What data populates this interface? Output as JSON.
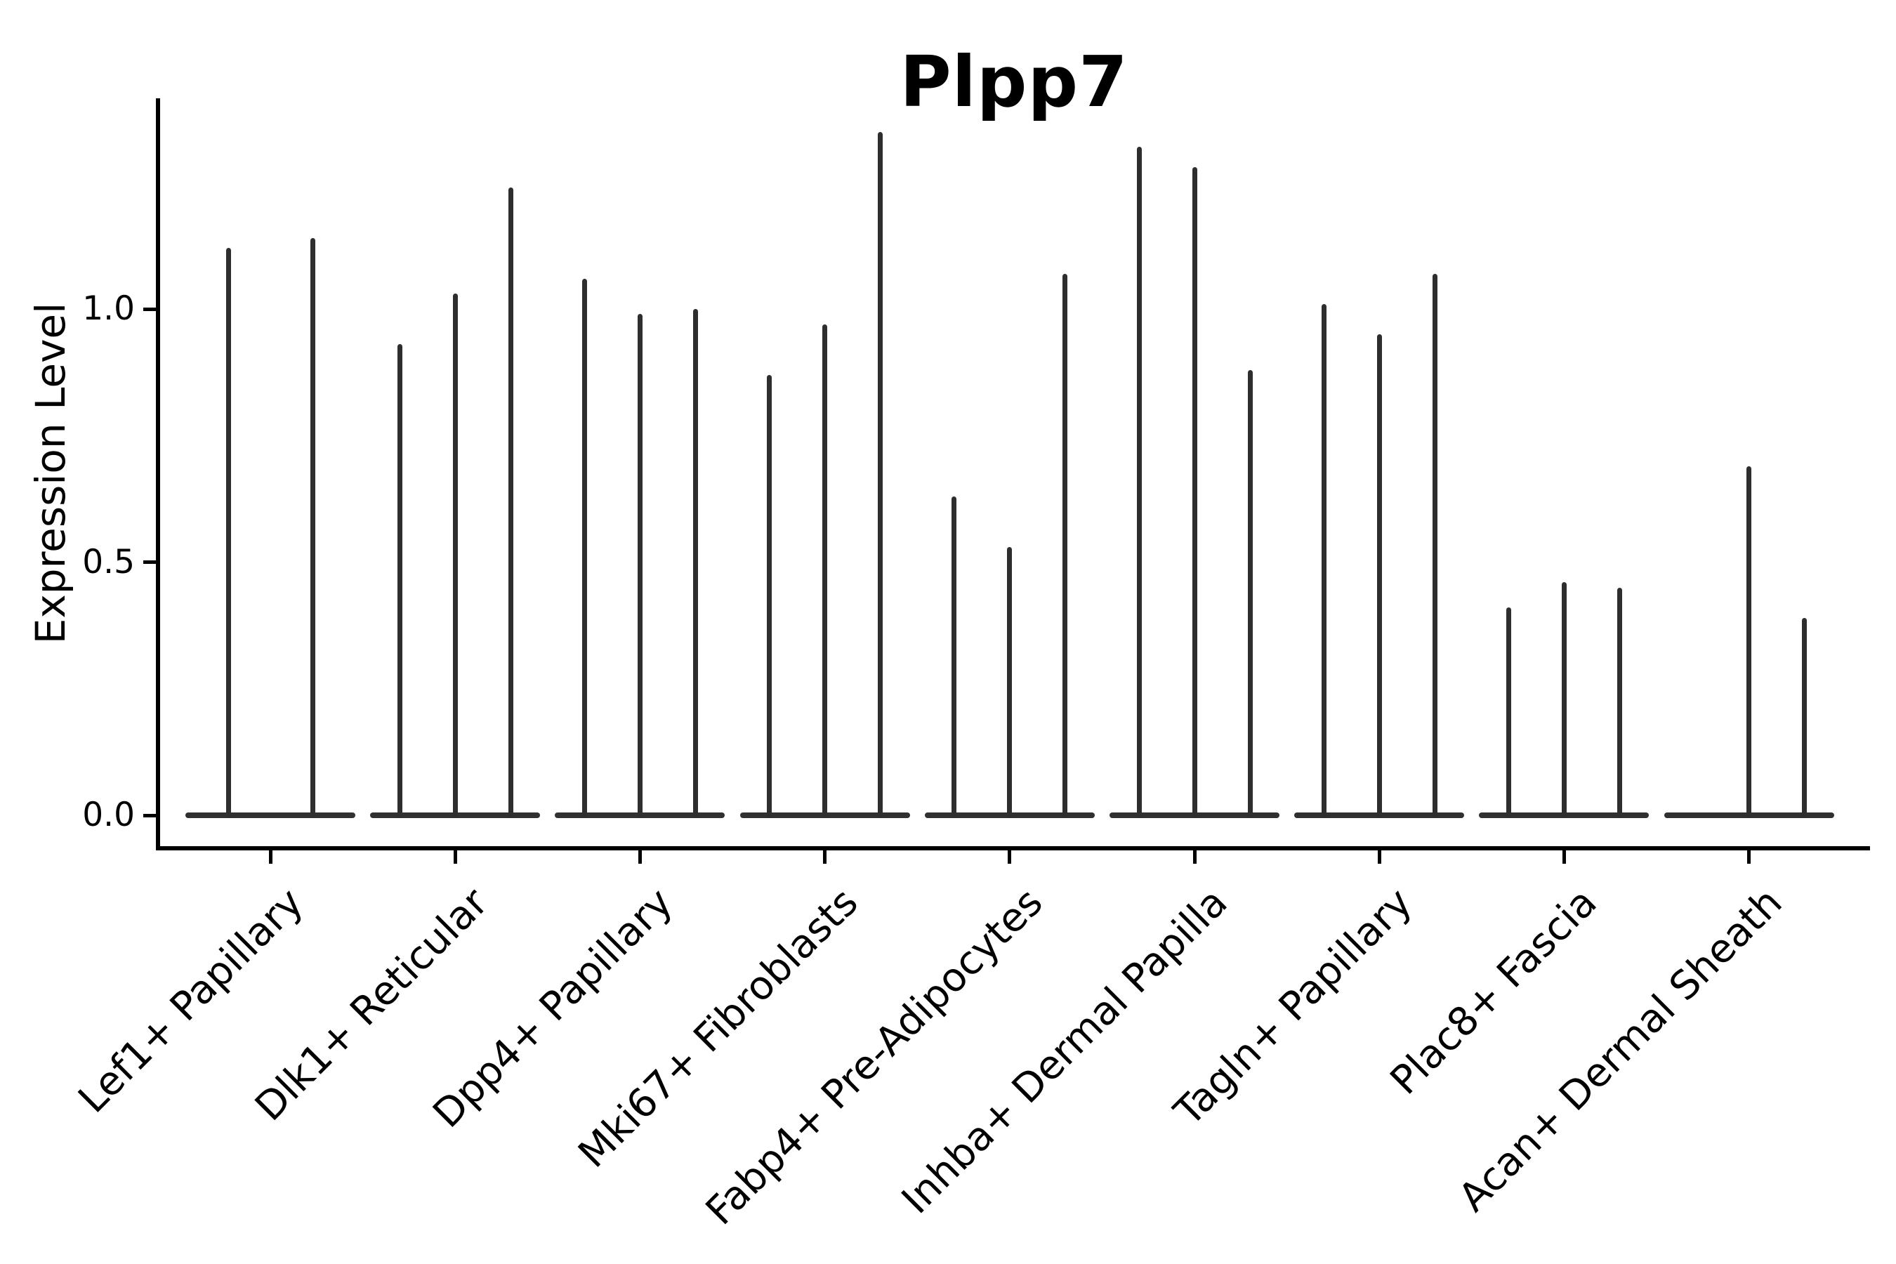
{
  "title": "Plpp7",
  "y_axis": {
    "label": "Expression Level",
    "tick_labels": [
      "0.0",
      "0.5",
      "1.0"
    ],
    "tick_values": [
      0.0,
      0.5,
      1.0
    ]
  },
  "x_axis": {
    "tick_labels": [
      "Lef1+ Papillary",
      "Dlk1+ Reticular",
      "Dpp4+ Papillary",
      "Mki67+ Fibroblasts",
      "Fabp4+ Pre-Adipocytes",
      "Inhba+ Dermal Papilla",
      "Tagln+ Papillary",
      "Plac8+ Fascia",
      "Acan+ Dermal Sheath"
    ]
  },
  "colors": {
    "background": "#ffffff",
    "ink": "#000000",
    "violin": "#2e2e2e"
  },
  "chart_data": {
    "type": "violin",
    "title": "Plpp7",
    "xlabel": "",
    "ylabel": "Expression Level",
    "ylim": [
      -0.07,
      1.42
    ],
    "yticks": [
      0.0,
      0.5,
      1.0
    ],
    "grid": false,
    "legend": "none",
    "description": "Stacked-at-zero violins: each cell-type group contains 2-3 dodged sub-violins that are flat pancakes at 0 expression with a single thin spike rising to the maximum expression value.",
    "categories": [
      "Lef1+ Papillary",
      "Dlk1+ Reticular",
      "Dpp4+ Papillary",
      "Mki67+ Fibroblasts",
      "Fabp4+ Pre-Adipocytes",
      "Inhba+ Dermal Papilla",
      "Tagln+ Papillary",
      "Plac8+ Fascia",
      "Acan+ Dermal Sheath"
    ],
    "series": [
      {
        "name": "Lef1+ Papillary",
        "spike_maxima": [
          1.12,
          1.14
        ]
      },
      {
        "name": "Dlk1+ Reticular",
        "spike_maxima": [
          0.93,
          1.03,
          1.24
        ]
      },
      {
        "name": "Dpp4+ Papillary",
        "spike_maxima": [
          1.06,
          0.99,
          1.0
        ]
      },
      {
        "name": "Mki67+ Fibroblasts",
        "spike_maxima": [
          0.87,
          0.97,
          1.35
        ]
      },
      {
        "name": "Fabp4+ Pre-Adipocytes",
        "spike_maxima": [
          0.63,
          0.53,
          1.07
        ]
      },
      {
        "name": "Inhba+ Dermal Papilla",
        "spike_maxima": [
          1.32,
          1.28,
          0.88
        ]
      },
      {
        "name": "Tagln+ Papillary",
        "spike_maxima": [
          1.01,
          0.95,
          1.07
        ]
      },
      {
        "name": "Plac8+ Fascia",
        "spike_maxima": [
          0.41,
          0.46,
          0.45
        ]
      },
      {
        "name": "Acan+ Dermal Sheath",
        "spike_maxima": [
          0.0,
          0.69,
          0.39
        ]
      }
    ]
  }
}
